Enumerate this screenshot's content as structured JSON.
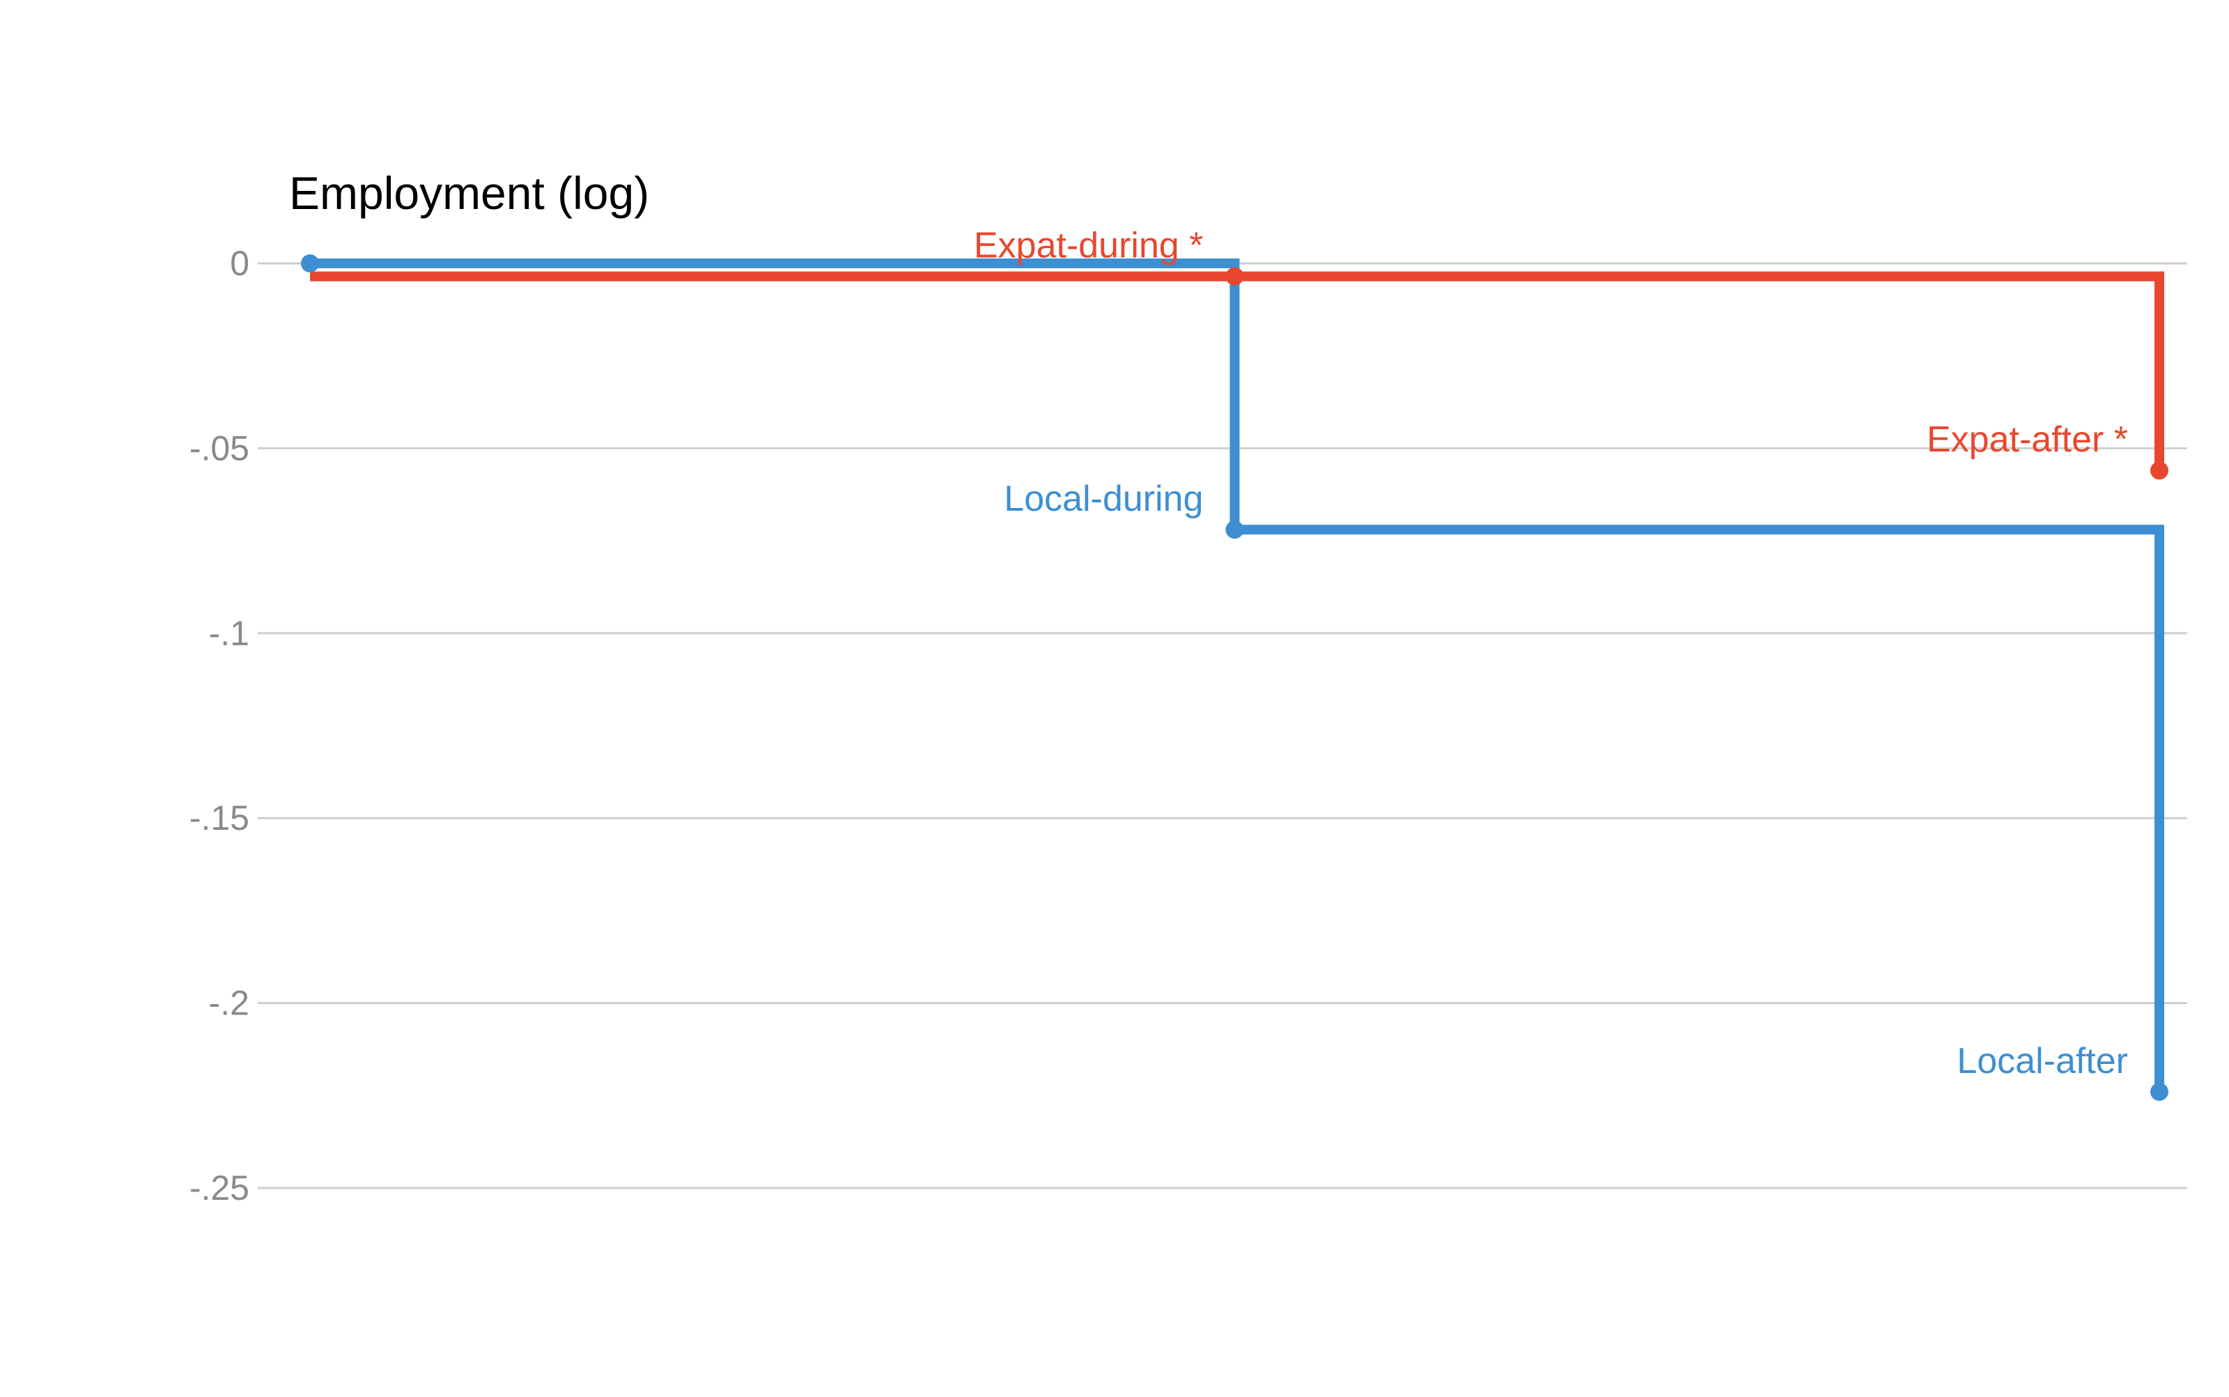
{
  "chart_data": {
    "type": "line",
    "step": true,
    "ylabel": "Employment (log)",
    "ylim": [
      -0.25,
      0
    ],
    "yticks": [
      0,
      -0.05,
      -0.1,
      -0.15,
      -0.2,
      -0.25
    ],
    "ytick_labels": [
      "0",
      "-.05",
      "-.1",
      "-.15",
      "-.2",
      "-.25"
    ],
    "grid": true,
    "x": [
      0,
      1,
      2
    ],
    "series": [
      {
        "name": "Expat",
        "color": "#e8472e",
        "values": [
          -0.0035,
          -0.0035,
          -0.056
        ],
        "point_labels": [
          "",
          "Expat-during *",
          "Expat-after *"
        ]
      },
      {
        "name": "Local",
        "color": "#3d8fd1",
        "values": [
          0,
          -0.072,
          -0.224
        ],
        "point_labels": [
          "",
          "Local-during",
          "Local-after"
        ]
      }
    ]
  }
}
